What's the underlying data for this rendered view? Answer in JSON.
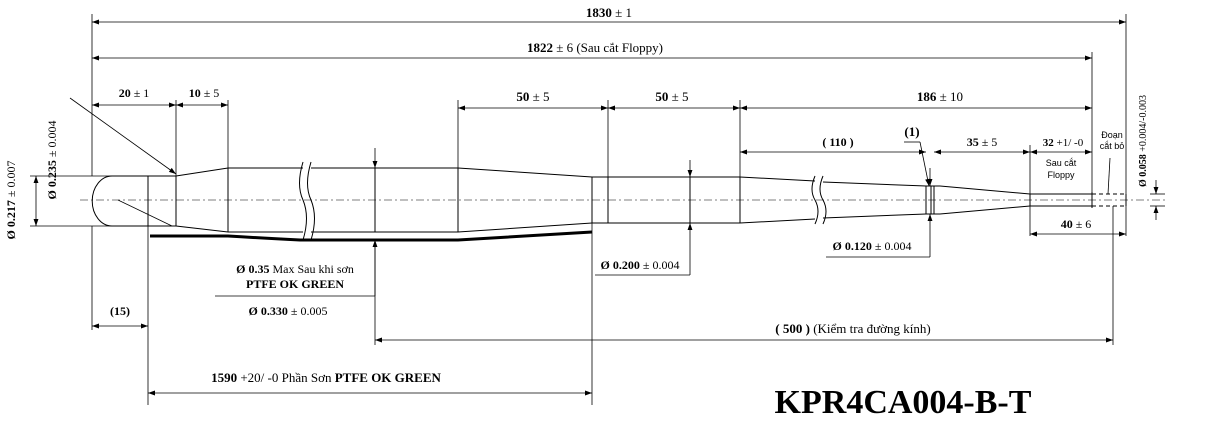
{
  "part_number": "KPR4CA004-B-T",
  "colors": {
    "ink": "#000000",
    "background": "#ffffff"
  },
  "overall": {
    "total_num": "1830",
    "total_tol": " ± 1",
    "floppy_num": "1822",
    "floppy_tol": " ± 6 (Sau cắt Floppy)"
  },
  "dims": {
    "d20": {
      "num": "20",
      "tol": " ± 1"
    },
    "d10": {
      "num": "10",
      "tol": " ± 5"
    },
    "d50a": {
      "num": "50",
      "tol": " ± 5"
    },
    "d50b": {
      "num": "50",
      "tol": " ± 5"
    },
    "d186": {
      "num": "186",
      "tol": " ± 10"
    },
    "d110": "( 110 )",
    "d35": {
      "num": "35",
      "tol": " ± 5"
    },
    "d32": {
      "num": "32",
      "tol": " +1/ -0"
    },
    "d40": {
      "num": "40",
      "tol": " ± 6"
    },
    "d15": "(15)",
    "marker1": "(1)"
  },
  "diameters": {
    "d0235": {
      "sym": "Ø ",
      "num": "0.235",
      "tol": " ± 0.004"
    },
    "d0217": {
      "sym": "Ø ",
      "num": "0.217",
      "tol": " ± 0.007"
    },
    "d035_line1": {
      "sym": "Ø ",
      "num": "0.35",
      "tol": " Max Sau khi sơn"
    },
    "d035_line2": "PTFE OK GREEN",
    "d0330": {
      "sym": "Ø ",
      "num": "0.330",
      "tol": " ± 0.005"
    },
    "d0200": {
      "sym": "Ø ",
      "num": "0.200",
      "tol": " ± 0.004"
    },
    "d0120": {
      "sym": "Ø ",
      "num": "0.120",
      "tol": " ± 0.004"
    },
    "d0058": {
      "sym": "Ø ",
      "num": "0.058",
      "tol": " +0.004/-0.003"
    }
  },
  "notes": {
    "sau_cat_line1": "Sau cắt",
    "sau_cat_line2": "Floppy",
    "doan_line1": "Đoạn",
    "doan_line2": "cắt bỏ",
    "check_label": "( 500 )",
    "check_text": "  (Kiểm tra đường kính)",
    "coat_num": "1590",
    "coat_tol": " +20/ -0 Phần Sơn ",
    "coat_bold": "PTFE OK GREEN"
  }
}
